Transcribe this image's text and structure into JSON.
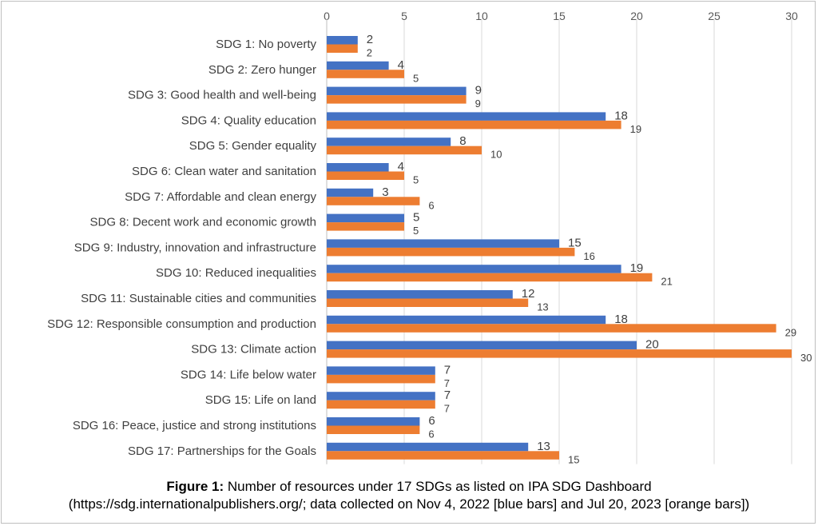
{
  "chart_data": {
    "type": "bar",
    "orientation": "horizontal",
    "categories": [
      "SDG 1: No poverty",
      "SDG 2: Zero hunger",
      "SDG 3: Good health and well-being",
      "SDG 4: Quality education",
      "SDG 5: Gender equality",
      "SDG 6: Clean water and sanitation",
      "SDG 7: Affordable and clean energy",
      "SDG 8: Decent work and economic growth",
      "SDG 9: Industry, innovation and infrastructure",
      "SDG 10: Reduced inequalities",
      "SDG 11: Sustainable cities and communities",
      "SDG 12: Responsible consumption and production",
      "SDG 13: Climate action",
      "SDG 14: Life below water",
      "SDG 15: Life on land",
      "SDG 16: Peace, justice and strong institutions",
      "SDG 17: Partnerships for the Goals"
    ],
    "series": [
      {
        "name": "Nov 4, 2022",
        "color": "#4472c4",
        "values": [
          2,
          4,
          9,
          18,
          8,
          4,
          3,
          5,
          15,
          19,
          12,
          18,
          20,
          7,
          7,
          6,
          13
        ]
      },
      {
        "name": "Jul 20, 2023",
        "color": "#ed7d31",
        "values": [
          2,
          5,
          9,
          19,
          10,
          5,
          6,
          5,
          16,
          21,
          13,
          29,
          30,
          7,
          7,
          6,
          15
        ]
      }
    ],
    "xlim": [
      0,
      30
    ],
    "xticks": [
      0,
      5,
      10,
      15,
      20,
      25,
      30
    ],
    "axis_position": "top",
    "grid": true,
    "legend": "none"
  },
  "caption": {
    "bold": "Figure 1:",
    "line1": " Number of resources under 17 SDGs as listed on IPA SDG Dashboard",
    "line2": "(https://sdg.internationalpublishers.org/; data collected on Nov 4, 2022 [blue bars] and Jul 20, 2023 [orange bars])"
  }
}
